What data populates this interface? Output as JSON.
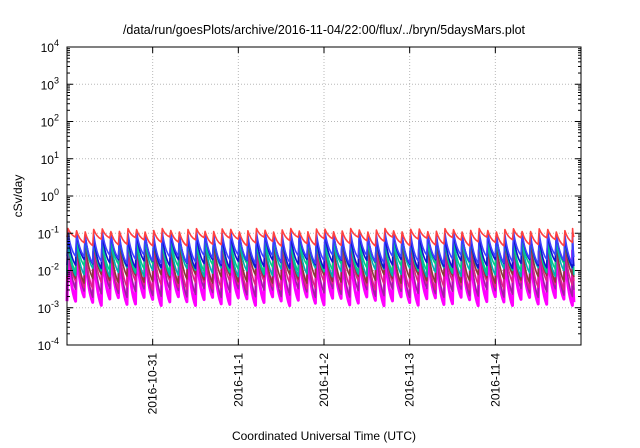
{
  "chart_data": {
    "type": "line",
    "title": "/data/run/goesPlots/archive/2016-11-04/22:00/flux/../bryn/5daysMars.plot",
    "xlabel": "Coordinated Universal Time (UTC)",
    "ylabel": "cSv/day",
    "y_scale": "log",
    "ylim": [
      0.0001,
      10000
    ],
    "y_ticks": [
      {
        "base": "10",
        "exp": "-4"
      },
      {
        "base": "10",
        "exp": "-3"
      },
      {
        "base": "10",
        "exp": "-2"
      },
      {
        "base": "10",
        "exp": "-1"
      },
      {
        "base": "10",
        "exp": "0"
      },
      {
        "base": "10",
        "exp": "1"
      },
      {
        "base": "10",
        "exp": "2"
      },
      {
        "base": "10",
        "exp": "3"
      },
      {
        "base": "10",
        "exp": "4"
      }
    ],
    "xlim": [
      "2016-10-30T00:00",
      "2016-11-05T00:00"
    ],
    "x_ticks": [
      "2016-10-31",
      "2016-11-1",
      "2016-11-2",
      "2016-11-3",
      "2016-11-4"
    ],
    "x_tick_dates": [
      "2016-10-31T00:00",
      "2016-11-01T00:00",
      "2016-11-02T00:00",
      "2016-11-03T00:00",
      "2016-11-04T00:00"
    ],
    "grid": true,
    "data_start": "2016-10-30T00:00",
    "data_end": "2016-11-04T22:00",
    "cycle_hours": 2.4,
    "series": [
      {
        "color": "#ff00ff",
        "peak": 0.035,
        "trough": 0.0015
      },
      {
        "color": "#a020a0",
        "peak": 0.045,
        "trough": 0.0025
      },
      {
        "color": "#e0208a",
        "peak": 0.05,
        "trough": 0.004
      },
      {
        "color": "#8b3a3a",
        "peak": 0.06,
        "trough": 0.006
      },
      {
        "color": "#00b0b0",
        "peak": 0.07,
        "trough": 0.009
      },
      {
        "color": "#00cc88",
        "peak": 0.075,
        "trough": 0.012
      },
      {
        "color": "#1010d0",
        "peak": 0.09,
        "trough": 0.015
      },
      {
        "color": "#4040ff",
        "peak": 0.1,
        "trough": 0.02
      },
      {
        "color": "#ff4040",
        "peak": 0.12,
        "trough": 0.06
      }
    ]
  }
}
